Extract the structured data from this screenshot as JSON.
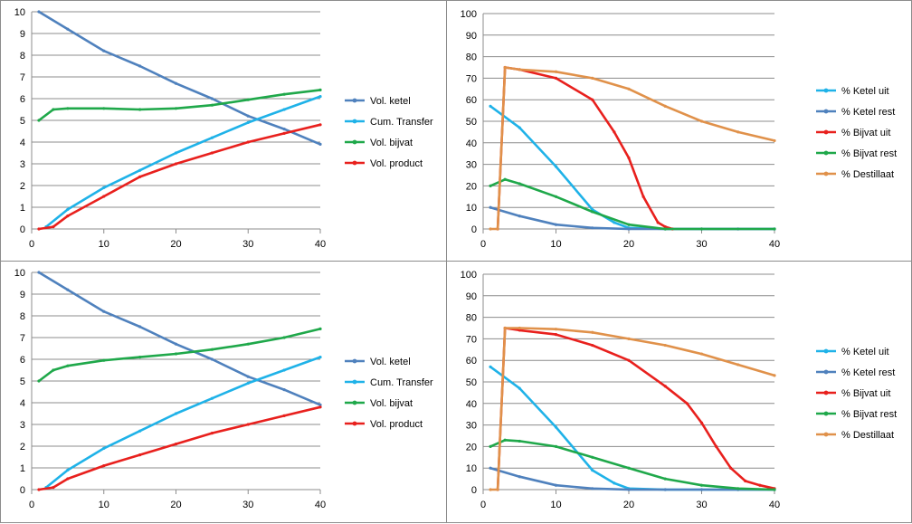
{
  "chart_data": [
    {
      "type": "line",
      "xlim": [
        0,
        40
      ],
      "ylim": [
        0,
        10
      ],
      "xticks": [
        0,
        10,
        20,
        30,
        40
      ],
      "yticks": [
        0,
        1,
        2,
        3,
        4,
        5,
        6,
        7,
        8,
        9,
        10
      ],
      "grid": "horizontal",
      "legend_position": "right",
      "series": [
        {
          "name": "Vol. ketel",
          "color": "#4f81bd",
          "x": [
            1,
            5,
            10,
            15,
            20,
            25,
            30,
            35,
            40
          ],
          "values": [
            10.0,
            9.2,
            8.2,
            7.5,
            6.7,
            6.0,
            5.2,
            4.6,
            3.9
          ]
        },
        {
          "name": "Cum. Transfer",
          "color": "#1fb2e8",
          "x": [
            2,
            5,
            10,
            15,
            20,
            25,
            30,
            35,
            40
          ],
          "values": [
            0.1,
            0.9,
            1.9,
            2.7,
            3.5,
            4.2,
            4.9,
            5.5,
            6.1
          ]
        },
        {
          "name": "Vol. bijvat",
          "color": "#1fa84a",
          "x": [
            1,
            3,
            5,
            10,
            15,
            20,
            25,
            30,
            35,
            40
          ],
          "values": [
            5.0,
            5.5,
            5.55,
            5.55,
            5.5,
            5.55,
            5.7,
            5.95,
            6.2,
            6.4
          ]
        },
        {
          "name": "Vol. product",
          "color": "#e8201d",
          "x": [
            1,
            3,
            5,
            10,
            15,
            20,
            25,
            30,
            35,
            40
          ],
          "values": [
            0.0,
            0.1,
            0.6,
            1.5,
            2.4,
            3.0,
            3.5,
            4.0,
            4.4,
            4.8
          ]
        }
      ]
    },
    {
      "type": "line",
      "xlim": [
        0,
        40
      ],
      "ylim": [
        0,
        100
      ],
      "xticks": [
        0,
        10,
        20,
        30,
        40
      ],
      "yticks": [
        0,
        10,
        20,
        30,
        40,
        50,
        60,
        70,
        80,
        90,
        100
      ],
      "grid": "horizontal",
      "legend_position": "right",
      "series": [
        {
          "name": "% Ketel uit",
          "color": "#1fb2e8",
          "x": [
            1,
            5,
            10,
            15,
            18,
            20,
            25,
            30,
            35,
            40
          ],
          "values": [
            57,
            47,
            29,
            9,
            3,
            0.5,
            0,
            0,
            0,
            0
          ]
        },
        {
          "name": "% Ketel rest",
          "color": "#4f81bd",
          "x": [
            1,
            5,
            10,
            15,
            20,
            25,
            30,
            35,
            40
          ],
          "values": [
            10,
            6,
            2,
            0.5,
            0,
            0,
            0,
            0,
            0
          ]
        },
        {
          "name": "% Bijvat uit",
          "color": "#e8201d",
          "x": [
            2,
            3,
            5,
            10,
            15,
            18,
            20,
            22,
            24,
            25,
            26
          ],
          "values": [
            0,
            75,
            74,
            70,
            60,
            45,
            33,
            15,
            3,
            1,
            0
          ]
        },
        {
          "name": "% Bijvat rest",
          "color": "#1fa84a",
          "x": [
            1,
            3,
            5,
            10,
            15,
            20,
            25,
            30,
            40
          ],
          "values": [
            20,
            23,
            21,
            15,
            8,
            2,
            0,
            0,
            0
          ]
        },
        {
          "name": "% Destillaat",
          "color": "#e0914a",
          "x": [
            1,
            2,
            3,
            5,
            10,
            15,
            20,
            25,
            30,
            35,
            40
          ],
          "values": [
            0,
            0,
            75,
            74,
            73,
            70,
            65,
            57,
            50,
            45,
            41
          ]
        }
      ]
    },
    {
      "type": "line",
      "xlim": [
        0,
        40
      ],
      "ylim": [
        0,
        10
      ],
      "xticks": [
        0,
        10,
        20,
        30,
        40
      ],
      "yticks": [
        0,
        1,
        2,
        3,
        4,
        5,
        6,
        7,
        8,
        9,
        10
      ],
      "grid": "horizontal",
      "legend_position": "right",
      "series": [
        {
          "name": "Vol. ketel",
          "color": "#4f81bd",
          "x": [
            1,
            5,
            10,
            15,
            20,
            25,
            30,
            35,
            40
          ],
          "values": [
            10.0,
            9.2,
            8.2,
            7.5,
            6.7,
            6.0,
            5.2,
            4.6,
            3.9
          ]
        },
        {
          "name": "Cum. Transfer",
          "color": "#1fb2e8",
          "x": [
            2,
            5,
            10,
            15,
            20,
            25,
            30,
            35,
            40
          ],
          "values": [
            0.1,
            0.9,
            1.9,
            2.7,
            3.5,
            4.2,
            4.9,
            5.5,
            6.1
          ]
        },
        {
          "name": "Vol. bijvat",
          "color": "#1fa84a",
          "x": [
            1,
            3,
            5,
            10,
            15,
            20,
            25,
            30,
            35,
            40
          ],
          "values": [
            5.0,
            5.5,
            5.7,
            5.95,
            6.1,
            6.25,
            6.45,
            6.7,
            7.0,
            7.4
          ]
        },
        {
          "name": "Vol. product",
          "color": "#e8201d",
          "x": [
            1,
            3,
            5,
            10,
            15,
            20,
            25,
            30,
            35,
            40
          ],
          "values": [
            0.0,
            0.1,
            0.5,
            1.1,
            1.6,
            2.1,
            2.6,
            3.0,
            3.4,
            3.8
          ]
        }
      ]
    },
    {
      "type": "line",
      "xlim": [
        0,
        40
      ],
      "ylim": [
        0,
        100
      ],
      "xticks": [
        0,
        10,
        20,
        30,
        40
      ],
      "yticks": [
        0,
        10,
        20,
        30,
        40,
        50,
        60,
        70,
        80,
        90,
        100
      ],
      "grid": "horizontal",
      "legend_position": "right",
      "series": [
        {
          "name": "% Ketel uit",
          "color": "#1fb2e8",
          "x": [
            1,
            5,
            10,
            15,
            18,
            20,
            25,
            30,
            35,
            40
          ],
          "values": [
            57,
            47,
            29,
            9,
            3,
            0.5,
            0,
            0,
            0,
            0
          ]
        },
        {
          "name": "% Ketel rest",
          "color": "#4f81bd",
          "x": [
            1,
            5,
            10,
            15,
            20,
            25,
            30,
            35,
            40
          ],
          "values": [
            10,
            6,
            2,
            0.5,
            0,
            0,
            0,
            0,
            0
          ]
        },
        {
          "name": "% Bijvat uit",
          "color": "#e8201d",
          "x": [
            2,
            3,
            5,
            10,
            15,
            20,
            25,
            28,
            30,
            32,
            34,
            36,
            38,
            40
          ],
          "values": [
            0,
            75,
            74,
            72,
            67,
            60,
            48,
            40,
            31,
            20,
            10,
            4,
            2,
            0.5
          ]
        },
        {
          "name": "% Bijvat rest",
          "color": "#1fa84a",
          "x": [
            1,
            3,
            5,
            10,
            15,
            20,
            25,
            30,
            35,
            40
          ],
          "values": [
            20,
            23,
            22.5,
            20,
            15,
            10,
            5,
            2,
            0.5,
            0
          ]
        },
        {
          "name": "% Destillaat",
          "color": "#e0914a",
          "x": [
            1,
            2,
            3,
            5,
            10,
            15,
            20,
            25,
            30,
            35,
            40
          ],
          "values": [
            0,
            0,
            75,
            75,
            74.5,
            73,
            70,
            67,
            63,
            58,
            53
          ]
        }
      ]
    }
  ]
}
